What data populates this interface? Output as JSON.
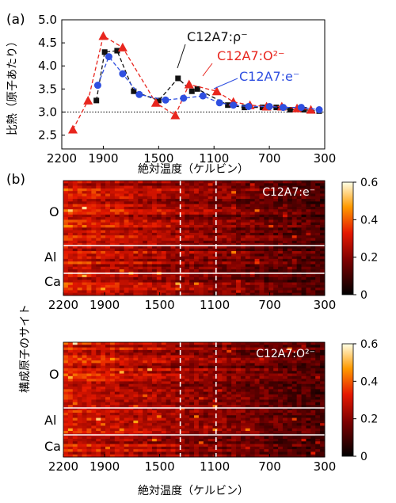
{
  "panel_a": {
    "label": "(a)",
    "ylabel": "比熱（原子あたり）",
    "xlabel": "絶対温度（ケルビン）",
    "xticks": [
      "2200",
      "1900",
      "1500",
      "1100",
      "700",
      "300"
    ],
    "yticks": [
      "2.5",
      "3.0",
      "3.5",
      "4.0",
      "4.5",
      "5.0"
    ],
    "legend": {
      "black": "C12A7:ρ⁻",
      "red": "C12A7:O²⁻",
      "blue": "C12A7:e⁻"
    }
  },
  "panel_b": {
    "label": "(b)",
    "ylabel": "構成原子のサイト",
    "xlabel": "絶対温度（ケルビン）",
    "xticks": [
      "2200",
      "1900",
      "1500",
      "1100",
      "700",
      "300"
    ],
    "sites": [
      "O",
      "Al",
      "Ca"
    ],
    "map1_title": "C12A7:e⁻",
    "map2_title": "C12A7:O²⁻",
    "colorbar_ticks": [
      "0.6",
      "0.4",
      "0.2",
      "0"
    ]
  },
  "colors": {
    "black": "#111111",
    "red": "#e8261e",
    "blue": "#2f4fe0"
  },
  "chart_data": [
    {
      "type": "line",
      "xlabel": "絶対温度（ケルビン）",
      "ylabel": "比熱（原子あたり）",
      "xlim": [
        2200,
        300
      ],
      "ylim": [
        2.2,
        5.0
      ],
      "reference_line": 3.0,
      "series": [
        {
          "name": "C12A7:ρ⁻",
          "color": "#111111",
          "marker": "square",
          "x": [
            1950,
            1890,
            1800,
            1680,
            1500,
            1360,
            1260,
            1220,
            1000,
            880,
            750,
            650,
            550,
            450,
            340
          ],
          "y": [
            3.25,
            4.3,
            4.33,
            3.45,
            3.25,
            3.73,
            3.45,
            3.5,
            3.15,
            3.1,
            3.1,
            3.1,
            3.05,
            3.05,
            3.02
          ]
        },
        {
          "name": "C12A7:O²⁻",
          "color": "#e8261e",
          "marker": "triangle",
          "x": [
            2120,
            2010,
            1900,
            1760,
            1520,
            1380,
            1280,
            1080,
            960,
            840,
            720,
            610,
            500,
            400
          ],
          "y": [
            2.62,
            3.25,
            4.65,
            4.4,
            3.2,
            2.93,
            3.6,
            3.45,
            3.22,
            3.15,
            3.12,
            3.12,
            3.08,
            3.05
          ]
        },
        {
          "name": "C12A7:e⁻",
          "color": "#2f4fe0",
          "marker": "circle",
          "x": [
            1940,
            1860,
            1760,
            1640,
            1450,
            1320,
            1180,
            1060,
            960,
            850,
            700,
            600,
            470,
            340
          ],
          "y": [
            3.58,
            4.2,
            3.83,
            3.38,
            3.26,
            3.3,
            3.35,
            3.2,
            3.15,
            3.12,
            3.12,
            3.1,
            3.1,
            3.05
          ]
        }
      ]
    },
    {
      "type": "heatmap",
      "title": "C12A7:e⁻",
      "xlim": [
        2200,
        300
      ],
      "rows": [
        "O",
        "Al",
        "Ca"
      ],
      "value_range": [
        0,
        0.6
      ],
      "dashed_lines_x": [
        1350,
        1090
      ]
    },
    {
      "type": "heatmap",
      "title": "C12A7:O²⁻",
      "xlim": [
        2200,
        300
      ],
      "rows": [
        "O",
        "Al",
        "Ca"
      ],
      "value_range": [
        0,
        0.6
      ],
      "dashed_lines_x": [
        1350,
        1090
      ]
    }
  ]
}
